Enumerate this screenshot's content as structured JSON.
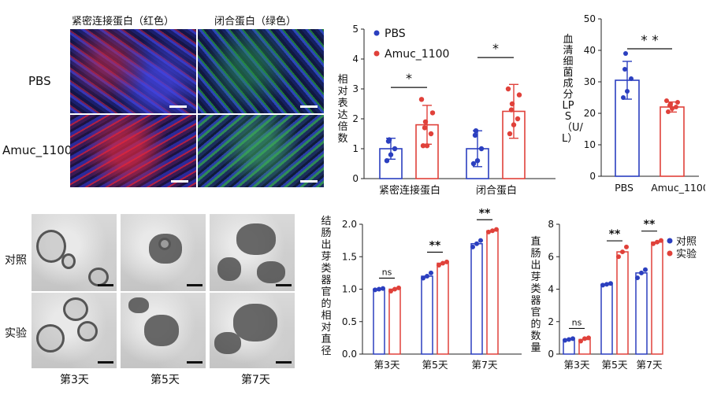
{
  "panel_a": {
    "col_headers": [
      "紧密连接蛋白（红色）",
      "闭合蛋白（绿色）"
    ],
    "row_labels": [
      "PBS",
      "Amuc_1100"
    ]
  },
  "panel_e": {
    "row_labels": [
      "对照",
      "实验"
    ],
    "col_labels": [
      "第3天",
      "第5天",
      "第7天"
    ]
  },
  "chart_data": [
    {
      "type": "bar",
      "ylabel": "相对表达倍数",
      "ylim": [
        0,
        5
      ],
      "yticks": [
        0,
        1,
        2,
        3,
        4,
        5
      ],
      "categories": [
        "紧密连接蛋白",
        "闭合蛋白"
      ],
      "legend": "top-left",
      "series": [
        {
          "name": "PBS",
          "color": "#2b3fbf",
          "values": [
            1.0,
            1.0
          ],
          "errors": [
            0.35,
            0.6
          ],
          "points": [
            [
              0.6,
              0.8,
              1.0,
              1.25,
              1.3
            ],
            [
              0.5,
              0.6,
              1.0,
              1.45,
              1.6
            ]
          ]
        },
        {
          "name": "Amuc_1100",
          "color": "#e0413a",
          "values": [
            1.8,
            2.25
          ],
          "errors": [
            0.65,
            0.9
          ],
          "points": [
            [
              1.1,
              1.1,
              1.5,
              1.7,
              1.9,
              2.2,
              2.65
            ],
            [
              1.5,
              1.8,
              2.0,
              2.3,
              2.5,
              2.8,
              3.0
            ]
          ]
        }
      ],
      "significance": [
        "*",
        "*"
      ]
    },
    {
      "type": "bar",
      "ylabel": "血清细菌成分LPS（U/L）",
      "ylim": [
        0,
        50
      ],
      "yticks": [
        0,
        10,
        20,
        30,
        40,
        50
      ],
      "categories": [
        "PBS",
        "Amuc_1100"
      ],
      "colors": [
        "#2b3fbf",
        "#e0413a"
      ],
      "values": [
        30.5,
        22.0
      ],
      "errors": [
        6.0,
        1.6
      ],
      "points": [
        [
          25,
          27,
          31,
          34,
          39
        ],
        [
          20.5,
          21.5,
          22,
          22.5,
          23,
          23.5,
          24
        ]
      ],
      "significance": "* *"
    },
    {
      "type": "bar",
      "ylabel": "结肠出芽类器官的相对直径",
      "ylim": [
        0,
        2.0
      ],
      "yticks": [
        "0.0",
        "0.5",
        "1.0",
        "1.5",
        "2.0"
      ],
      "categories": [
        "第3天",
        "第5天",
        "第7天"
      ],
      "series": [
        {
          "name": "对照",
          "color": "#2b3fbf",
          "values": [
            1.0,
            1.2,
            1.7
          ],
          "points": [
            [
              0.99,
              1.0,
              1.01
            ],
            [
              1.17,
              1.2,
              1.25
            ],
            [
              1.65,
              1.7,
              1.75
            ]
          ]
        },
        {
          "name": "实验",
          "color": "#e0413a",
          "values": [
            1.0,
            1.4,
            1.9
          ],
          "points": [
            [
              0.97,
              1.0,
              1.02
            ],
            [
              1.37,
              1.4,
              1.42
            ],
            [
              1.88,
              1.9,
              1.92
            ]
          ]
        }
      ],
      "significance": [
        "ns",
        "**",
        "**"
      ]
    },
    {
      "type": "bar",
      "ylabel": "直肠出芽类器官的数量",
      "ylim": [
        0,
        8
      ],
      "yticks": [
        "0",
        "2",
        "4",
        "6",
        "8"
      ],
      "categories": [
        "第3天",
        "第5天",
        "第7天"
      ],
      "legend": "top-right",
      "series": [
        {
          "name": "对照",
          "color": "#2b3fbf",
          "values": [
            0.9,
            4.3,
            5.0
          ],
          "points": [
            [
              0.85,
              0.9,
              0.95
            ],
            [
              4.25,
              4.3,
              4.35
            ],
            [
              4.7,
              5.0,
              5.2
            ]
          ]
        },
        {
          "name": "实验",
          "color": "#e0413a",
          "values": [
            0.9,
            6.3,
            6.9
          ],
          "points": [
            [
              0.8,
              0.95,
              1.0
            ],
            [
              6.0,
              6.3,
              6.6
            ],
            [
              6.8,
              6.9,
              7.0
            ]
          ]
        }
      ],
      "significance": [
        "ns",
        "**",
        "**"
      ]
    }
  ]
}
